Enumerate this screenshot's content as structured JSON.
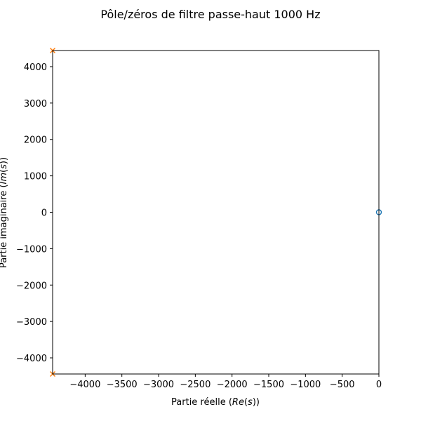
{
  "chart_data": {
    "type": "scatter",
    "title": "Pôle/zéros de filtre passe-haut 1000 Hz",
    "xlabel": {
      "prefix": "Partie réelle (",
      "math": "Re",
      "mid": "(",
      "var": "s",
      "suffix": "))"
    },
    "ylabel": {
      "prefix": "Partie imaginaire (",
      "math": "Im",
      "mid": "(",
      "var": "s",
      "suffix": "))"
    },
    "xlim": [
      -4443,
      0
    ],
    "ylim": [
      -4443,
      4443
    ],
    "xticks": [
      -4000,
      -3500,
      -3000,
      -2500,
      -2000,
      -1500,
      -1000,
      -500,
      0
    ],
    "xtick_labels": [
      "−4000",
      "−3500",
      "−3000",
      "−2500",
      "−2000",
      "−1500",
      "−1000",
      "−500",
      "0"
    ],
    "yticks": [
      4000,
      3000,
      2000,
      1000,
      0,
      -1000,
      -2000,
      -3000,
      -4000
    ],
    "ytick_labels": [
      "4000",
      "3000",
      "2000",
      "1000",
      "0",
      "−1000",
      "−2000",
      "−3000",
      "−4000"
    ],
    "grid": false,
    "series": [
      {
        "marker": "o",
        "color": "#1f77b4",
        "x": [
          0
        ],
        "y": [
          0
        ]
      },
      {
        "marker": "x",
        "color": "#ff7f0e",
        "x": [
          -4443,
          -4443
        ],
        "y": [
          4443,
          -4443
        ]
      }
    ]
  }
}
